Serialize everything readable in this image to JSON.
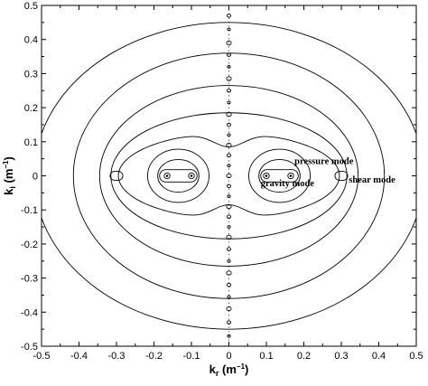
{
  "chart_data": {
    "type": "contour",
    "x_label_main": "k",
    "x_label_sub": "r",
    "x_label_unit": " (m",
    "x_label_exp": "−1",
    "x_label_close": ")",
    "y_label_main": "k",
    "y_label_sub": "i",
    "y_label_unit": " (m",
    "y_label_exp": "−1",
    "y_label_close": ")",
    "xlim": [
      -0.5,
      0.5
    ],
    "ylim": [
      -0.5,
      0.5
    ],
    "x_ticks": [
      -0.5,
      -0.4,
      -0.3,
      -0.2,
      -0.1,
      0,
      0.1,
      0.2,
      0.3,
      0.4,
      0.5
    ],
    "x_tick_labels": [
      "-0.5",
      "-0.4",
      "-0.3",
      "-0.2",
      "-0.1",
      "0",
      "0.1",
      "0.2",
      "0.3",
      "0.4",
      "0.5"
    ],
    "y_ticks": [
      -0.5,
      -0.4,
      -0.3,
      -0.2,
      -0.1,
      0,
      0.1,
      0.2,
      0.3,
      0.4,
      0.5
    ],
    "y_tick_labels": [
      "-0.5",
      "-0.4",
      "-0.3",
      "-0.2",
      "-0.1",
      "0",
      "0.1",
      "0.2",
      "0.3",
      "0.4",
      "0.5"
    ],
    "ellipses": [
      {
        "cx": 0,
        "cy": 0,
        "rx": 0.52,
        "ry": 0.45
      },
      {
        "cx": 0,
        "cy": 0,
        "rx": 0.415,
        "ry": 0.36
      },
      {
        "cx": 0,
        "cy": 0,
        "rx": 0.345,
        "ry": 0.265
      },
      {
        "cx": 0,
        "cy": 0,
        "rx": 0.315,
        "ry": 0.185
      }
    ],
    "lobes": [
      {
        "c": 0.135,
        "r": 0.082,
        "ry": 0.078
      },
      {
        "c": 0.135,
        "r": 0.055,
        "ry": 0.048
      }
    ],
    "outer_peanut": {
      "c": 0.16,
      "rx": 0.135,
      "ry": 0.125,
      "waist": 0.085
    },
    "islands": [
      {
        "x": -0.135,
        "y": 0,
        "rx": 0.05,
        "ry": 0.018
      },
      {
        "x": 0.135,
        "y": 0,
        "rx": 0.05,
        "ry": 0.018
      },
      {
        "x": -0.3,
        "y": 0,
        "rx": 0.017,
        "ry": 0.013
      },
      {
        "x": 0.3,
        "y": 0,
        "rx": 0.017,
        "ry": 0.013
      }
    ],
    "points": [
      {
        "x": -0.165,
        "y": 0
      },
      {
        "x": -0.1,
        "y": 0
      },
      {
        "x": 0.1,
        "y": 0
      },
      {
        "x": 0.165,
        "y": 0
      }
    ],
    "axis_symbol_y": [
      -0.47,
      -0.43,
      -0.39,
      -0.355,
      -0.32,
      -0.285,
      -0.25,
      -0.215,
      -0.18,
      -0.15,
      -0.12,
      -0.09,
      -0.06,
      -0.03,
      0,
      0.03,
      0.06,
      0.09,
      0.12,
      0.15,
      0.18,
      0.215,
      0.25,
      0.285,
      0.32,
      0.355,
      0.39,
      0.43,
      0.47
    ],
    "annotations": [
      {
        "text": "pressure mode",
        "x": 0.175,
        "y": 0.035
      },
      {
        "text": "gravity mode",
        "x": 0.085,
        "y": -0.03
      },
      {
        "text": "shear mode",
        "x": 0.32,
        "y": -0.02
      }
    ]
  }
}
